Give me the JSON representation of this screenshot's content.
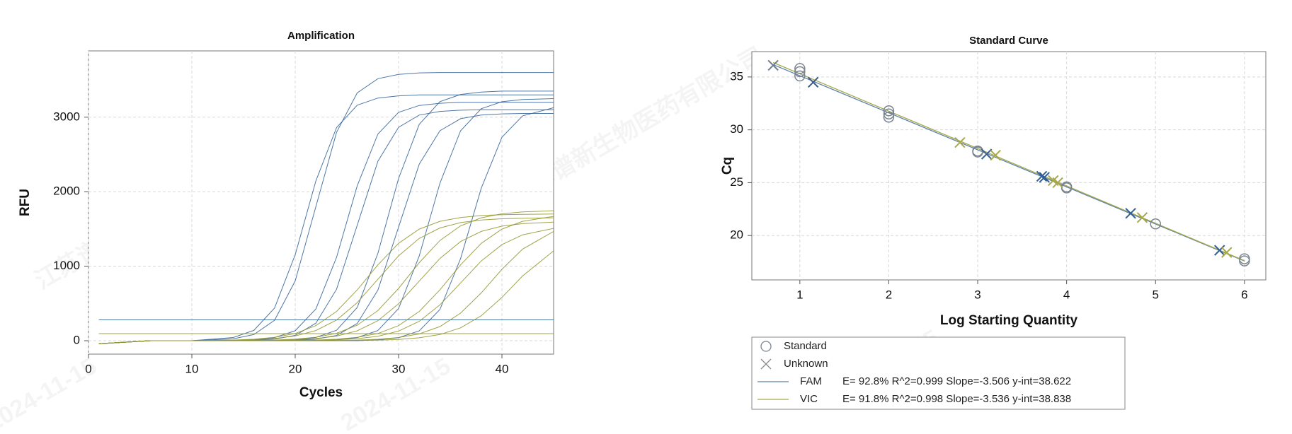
{
  "watermark": {
    "company": "江苏谱新生物医药有限公司",
    "date": "2024-11-15"
  },
  "chart_data": [
    {
      "type": "line",
      "title": "Amplification",
      "x_label": "Cycles",
      "y_label": "RFU",
      "xlim": [
        0,
        45
      ],
      "ylim": [
        -180,
        3890
      ],
      "xticks": [
        0,
        10,
        20,
        30,
        40
      ],
      "yticks": [
        0,
        1000,
        2000,
        3000
      ],
      "grid": true,
      "x": [
        1,
        6,
        10,
        14,
        16,
        18,
        20,
        22,
        24,
        26,
        28,
        30,
        32,
        34,
        36,
        38,
        40,
        42,
        45
      ],
      "series": [
        {
          "color": "#2f5f97",
          "values": [
            -40,
            0,
            0,
            43,
            139,
            439,
            1155,
            2145,
            2861,
            3161,
            3257,
            3287,
            3300,
            3300,
            3300,
            3300,
            3300,
            3300,
            3300
          ]
        },
        {
          "color": "#2f5f97",
          "values": [
            -40,
            0,
            0,
            25,
            83,
            274,
            803,
            1800,
            2797,
            3326,
            3517,
            3575,
            3595,
            3600,
            3600,
            3600,
            3600,
            3600,
            3600
          ]
        },
        {
          "color": "#2f5f97",
          "values": [
            -40,
            0,
            0,
            0,
            13,
            42,
            134,
            426,
            1120,
            2080,
            2774,
            3066,
            3158,
            3187,
            3200,
            3200,
            3200,
            3200,
            3200
          ]
        },
        {
          "color": "#2f5f97",
          "values": [
            -40,
            0,
            0,
            0,
            5,
            22,
            71,
            236,
            691,
            1550,
            2409,
            2864,
            3029,
            3078,
            3094,
            3100,
            3100,
            3100,
            3100
          ]
        },
        {
          "color": "#2f5f97",
          "values": [
            -40,
            0,
            0,
            0,
            0,
            0,
            13,
            44,
            141,
            446,
            1173,
            2178,
            2904,
            3209,
            3306,
            3337,
            3350,
            3350,
            3350
          ]
        },
        {
          "color": "#2f5f97",
          "values": [
            -40,
            0,
            0,
            0,
            0,
            0,
            5,
            21,
            70,
            232,
            680,
            1525,
            2370,
            2818,
            2980,
            3029,
            3045,
            3050,
            3050
          ]
        },
        {
          "color": "#2f5f97",
          "values": [
            -40,
            0,
            0,
            0,
            0,
            0,
            0,
            0,
            13,
            42,
            137,
            432,
            1138,
            2113,
            2818,
            3114,
            3208,
            3237,
            3250
          ]
        },
        {
          "color": "#2f5f97",
          "values": [
            -40,
            0,
            0,
            0,
            0,
            0,
            0,
            0,
            0,
            0,
            13,
            41,
            132,
            419,
            1103,
            2048,
            2731,
            3018,
            3128
          ]
        },
        {
          "color": "#2f5f97",
          "values": [
            280,
            280,
            280,
            280,
            280,
            280,
            280,
            280,
            280,
            280,
            280,
            280,
            280,
            280,
            280,
            280,
            280,
            280,
            280
          ]
        },
        {
          "color": "#8f9428",
          "values": [
            -40,
            0,
            0,
            9,
            20,
            46,
            97,
            202,
            393,
            682,
            1018,
            1307,
            1498,
            1603,
            1654,
            1680,
            1692,
            1697,
            1700
          ]
        },
        {
          "color": "#8f9428",
          "values": [
            -40,
            0,
            0,
            6,
            13,
            30,
            64,
            137,
            277,
            512,
            825,
            1139,
            1373,
            1513,
            1586,
            1620,
            1637,
            1644,
            1650
          ]
        },
        {
          "color": "#8f9428",
          "values": [
            -40,
            0,
            0,
            0,
            4,
            9,
            21,
            47,
            100,
            208,
            404,
            702,
            1048,
            1346,
            1542,
            1650,
            1703,
            1729,
            1745
          ]
        },
        {
          "color": "#8f9428",
          "values": [
            -40,
            0,
            0,
            0,
            0,
            5,
            13,
            29,
            62,
            133,
            269,
            496,
            800,
            1104,
            1331,
            1467,
            1538,
            1571,
            1592
          ]
        },
        {
          "color": "#8f9428",
          "values": [
            -40,
            0,
            0,
            0,
            0,
            0,
            4,
            9,
            20,
            46,
            97,
            202,
            393,
            682,
            1018,
            1307,
            1498,
            1603,
            1669
          ]
        },
        {
          "color": "#8f9428",
          "values": [
            -40,
            0,
            0,
            0,
            0,
            0,
            0,
            6,
            13,
            28,
            60,
            129,
            260,
            481,
            775,
            1070,
            1290,
            1421,
            1508
          ]
        },
        {
          "color": "#8f9428",
          "values": [
            -40,
            0,
            0,
            0,
            0,
            0,
            0,
            0,
            4,
            9,
            19,
            43,
            91,
            190,
            370,
            642,
            958,
            1230,
            1467
          ]
        },
        {
          "color": "#8f9428",
          "values": [
            -40,
            0,
            0,
            0,
            0,
            0,
            0,
            0,
            0,
            4,
            8,
            17,
            39,
            83,
            173,
            335,
            581,
            869,
            1206
          ]
        },
        {
          "color": "#8f9428",
          "values": [
            95,
            95,
            95,
            95,
            95,
            95,
            95,
            95,
            95,
            95,
            95,
            95,
            95,
            95,
            95,
            95,
            95,
            95,
            95
          ]
        }
      ]
    },
    {
      "type": "scatter",
      "title": "Standard Curve",
      "x_label": "Log Starting Quantity",
      "y_label": "Cq",
      "xlim": [
        0.46,
        6.24
      ],
      "ylim": [
        15.8,
        37.4
      ],
      "xticks": [
        1,
        2,
        3,
        4,
        5,
        6
      ],
      "yticks": [
        20,
        25,
        30,
        35
      ],
      "grid": true,
      "legend": "below",
      "series": [
        {
          "name": "Standard",
          "marker": "circle",
          "color": "#7a8590",
          "x": [
            1,
            1,
            1,
            2,
            2,
            2,
            3,
            3,
            4,
            4,
            5,
            6,
            6
          ],
          "values": [
            35.8,
            35.5,
            35.1,
            31.8,
            31.5,
            31.2,
            28.0,
            27.9,
            24.6,
            24.5,
            21.1,
            17.8,
            17.6
          ]
        },
        {
          "name": "Unknown",
          "marker": "x",
          "color": "#8a8a8a",
          "point_colors": [
            "#6a7d90",
            "#3a5f8f",
            "#3a5f8f",
            "#2f5f97",
            "#2f5f97",
            "#2f5f97",
            "#2f5f97",
            "#a7a94a",
            "#a7a94a",
            "#a7a94a",
            "#a7a94a",
            "#a7a94a",
            "#a7a94a"
          ],
          "x": [
            0.7,
            1.15,
            3.1,
            3.72,
            3.75,
            4.72,
            5.72,
            2.8,
            3.2,
            3.9,
            3.85,
            4.85,
            5.8
          ],
          "values": [
            36.1,
            34.5,
            27.7,
            25.6,
            25.5,
            22.1,
            18.6,
            28.8,
            27.6,
            25.0,
            25.2,
            21.7,
            18.4
          ]
        }
      ],
      "fits": [
        {
          "name": "FAM",
          "label": "E= 92.8% R^2=0.999 Slope=-3.506 y-int=38.622",
          "color": "#5a80aa",
          "slope": -3.506,
          "intercept": 38.622
        },
        {
          "name": "VIC",
          "label": "E= 91.8% R^2=0.998 Slope=-3.536 y-int=38.838",
          "color": "#a7a94a",
          "slope": -3.536,
          "intercept": 38.838
        }
      ]
    }
  ]
}
